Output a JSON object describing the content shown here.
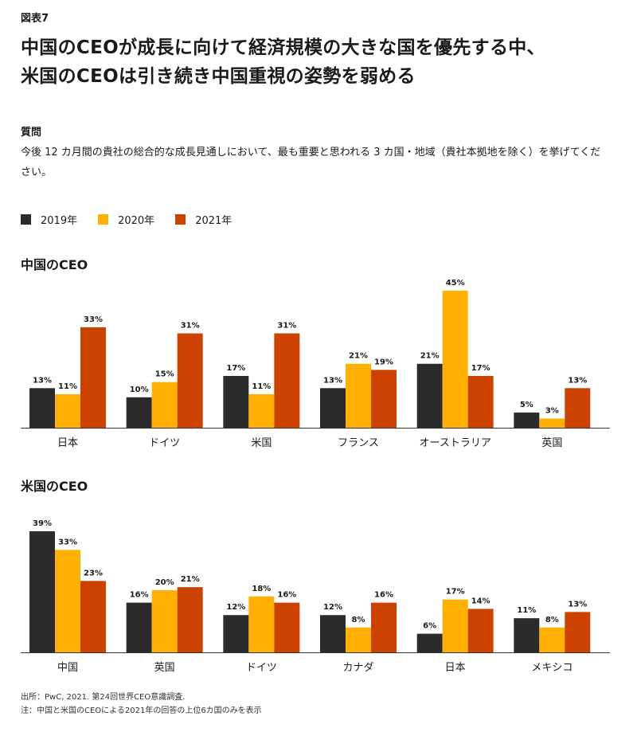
{
  "figure_label": "図表7",
  "title_lines": [
    "中国のCEOが成長に向けて経済規模の大きな国を優先する中、",
    "米国のCEOは引き続き中国重視の姿勢を弱める"
  ],
  "question_label": "質問",
  "question_text": "今後 12 カ月間の貴社の総合的な成長見通しにおいて、最も重要と思われる 3 カ国・地域（貴社本拠地を除く）を挙げてください。",
  "legend": [
    {
      "label": "2019年",
      "color": "#2b2b2b"
    },
    {
      "label": "2020年",
      "color": "#ffb000"
    },
    {
      "label": "2021年",
      "color": "#cc4200"
    }
  ],
  "chart_data": [
    {
      "type": "bar",
      "title": "中国のCEO",
      "categories": [
        "日本",
        "ドイツ",
        "米国",
        "フランス",
        "オーストラリア",
        "英国"
      ],
      "series": [
        {
          "name": "2019年",
          "values": [
            13,
            10,
            17,
            13,
            21,
            5
          ]
        },
        {
          "name": "2020年",
          "values": [
            11,
            15,
            11,
            21,
            45,
            3
          ]
        },
        {
          "name": "2021年",
          "values": [
            33,
            31,
            31,
            19,
            17,
            13
          ]
        }
      ],
      "unit": "%",
      "ylim": [
        0,
        45
      ],
      "grid": false,
      "legend_position": "top-left"
    },
    {
      "type": "bar",
      "title": "米国のCEO",
      "categories": [
        "中国",
        "英国",
        "ドイツ",
        "カナダ",
        "日本",
        "メキシコ"
      ],
      "series": [
        {
          "name": "2019年",
          "values": [
            39,
            16,
            12,
            12,
            6,
            11
          ]
        },
        {
          "name": "2020年",
          "values": [
            33,
            20,
            18,
            8,
            17,
            8
          ]
        },
        {
          "name": "2021年",
          "values": [
            23,
            21,
            16,
            16,
            14,
            13
          ]
        }
      ],
      "unit": "%",
      "ylim": [
        0,
        39
      ],
      "grid": false,
      "legend_position": "top-left"
    }
  ],
  "footer_lines": [
    "出所：PwC, 2021. 第24回世界CEO意識調査.",
    "注：中国と米国のCEOによる2021年の回答の上位6カ国のみを表示"
  ]
}
